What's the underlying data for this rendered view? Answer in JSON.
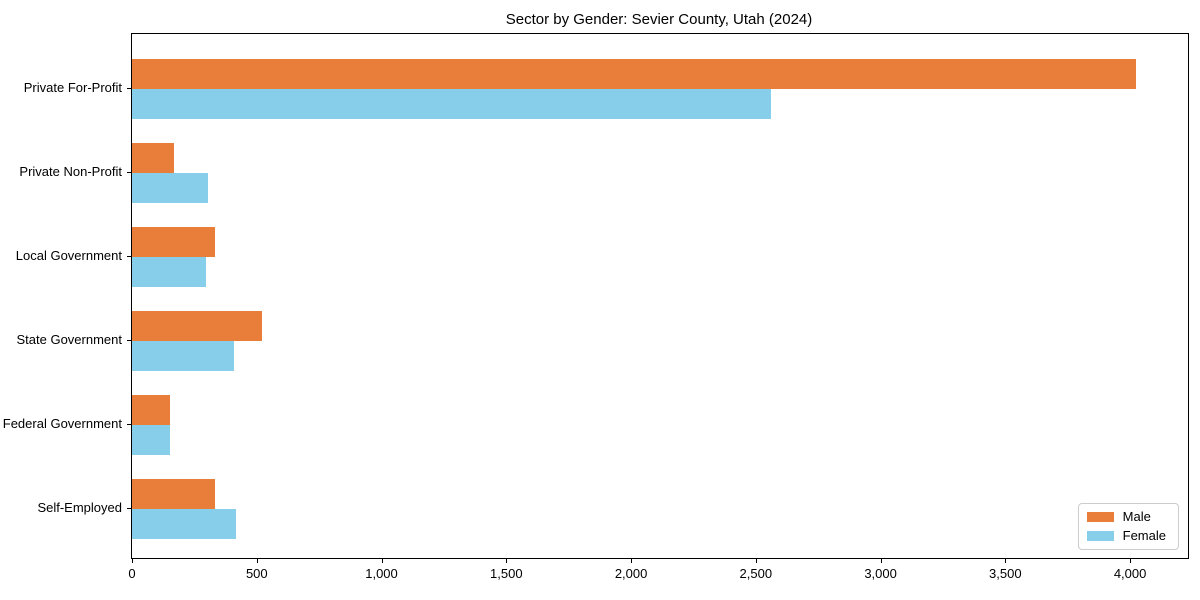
{
  "chart_data": {
    "type": "bar",
    "orientation": "horizontal",
    "title": "Sector by Gender: Sevier County, Utah (2024)",
    "categories": [
      "Private For-Profit",
      "Private Non-Profit",
      "Local Government",
      "State Government",
      "Federal Government",
      "Self-Employed"
    ],
    "series": [
      {
        "name": "Male",
        "color": "#e97e3a",
        "values": [
          4025,
          168,
          333,
          521,
          152,
          333
        ]
      },
      {
        "name": "Female",
        "color": "#87ceeb",
        "values": [
          2560,
          306,
          297,
          409,
          152,
          417
        ]
      }
    ],
    "xlim": [
      0,
      4232
    ],
    "xticks": [
      0,
      500,
      1000,
      1500,
      2000,
      2500,
      3000,
      3500,
      4000
    ],
    "xtick_labels": [
      "0",
      "500",
      "1,000",
      "1,500",
      "2,000",
      "2,500",
      "3,000",
      "3,500",
      "4,000"
    ],
    "xlabel": "",
    "ylabel": "",
    "grid": false,
    "legend": {
      "position": "lower right",
      "entries": [
        "Male",
        "Female"
      ]
    }
  }
}
